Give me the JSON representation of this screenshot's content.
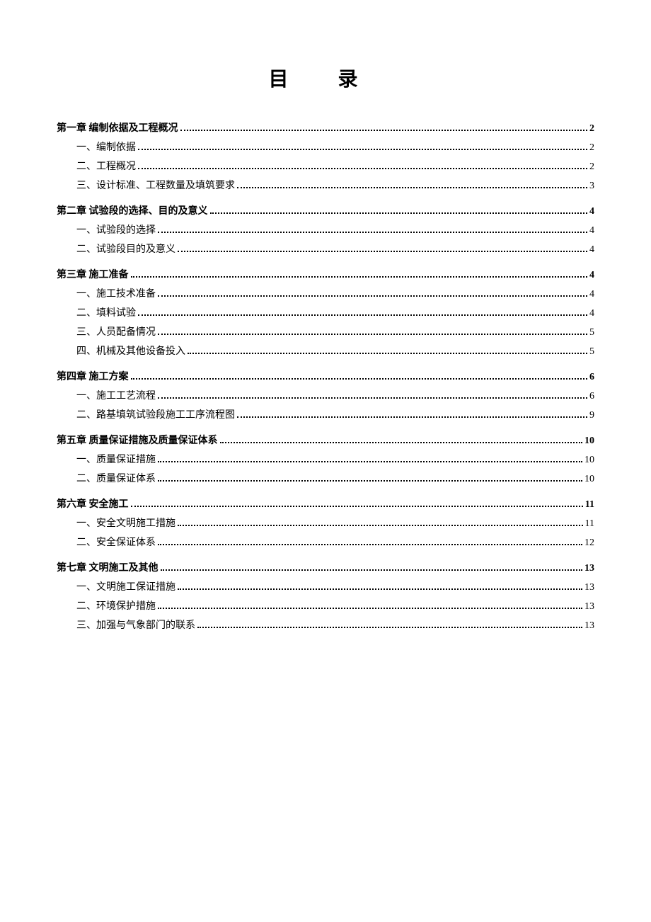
{
  "title": "目录",
  "toc": [
    {
      "type": "chapter",
      "label": "第一章  编制依据及工程概况",
      "page": "2"
    },
    {
      "type": "sub",
      "label": "一、编制依据",
      "page": "2"
    },
    {
      "type": "sub",
      "label": "二、工程概况",
      "page": "2"
    },
    {
      "type": "sub",
      "label": "三、设计标准、工程数量及填筑要求",
      "page": "3"
    },
    {
      "type": "chapter",
      "label": "第二章  试验段的选择、目的及意义",
      "page": "4"
    },
    {
      "type": "sub",
      "label": "一、试验段的选择",
      "page": "4"
    },
    {
      "type": "sub",
      "label": "二、试验段目的及意义",
      "page": "4"
    },
    {
      "type": "chapter",
      "label": "第三章  施工准备",
      "page": "4"
    },
    {
      "type": "sub",
      "label": "一、施工技术准备",
      "page": "4"
    },
    {
      "type": "sub",
      "label": "二、填料试验",
      "page": "4"
    },
    {
      "type": "sub",
      "label": "三、人员配备情况",
      "page": "5"
    },
    {
      "type": "sub",
      "label": "四、机械及其他设备投入",
      "page": "5"
    },
    {
      "type": "chapter",
      "label": "第四章  施工方案",
      "page": "6"
    },
    {
      "type": "sub",
      "label": "一、施工工艺流程",
      "page": "6"
    },
    {
      "type": "sub",
      "label": "二、路基填筑试验段施工工序流程图",
      "page": "9"
    },
    {
      "type": "chapter",
      "label": "第五章  质量保证措施及质量保证体系",
      "page": "10"
    },
    {
      "type": "sub",
      "label": "一、质量保证措施",
      "page": "10"
    },
    {
      "type": "sub",
      "label": "二、质量保证体系",
      "page": "10"
    },
    {
      "type": "chapter",
      "label": "第六章  安全施工",
      "page": "11"
    },
    {
      "type": "sub",
      "label": "一、安全文明施工措施",
      "page": "11"
    },
    {
      "type": "sub",
      "label": "二、安全保证体系",
      "page": "12"
    },
    {
      "type": "chapter",
      "label": "第七章  文明施工及其他",
      "page": "13"
    },
    {
      "type": "sub",
      "label": "一、文明施工保证措施",
      "page": "13"
    },
    {
      "type": "sub",
      "label": "二、环境保护措施",
      "page": "13"
    },
    {
      "type": "sub",
      "label": "三、加强与气象部门的联系",
      "page": "13"
    }
  ]
}
